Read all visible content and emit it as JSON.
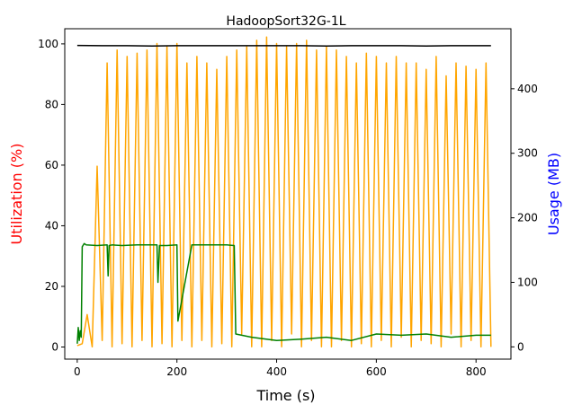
{
  "chart_data": {
    "type": "line",
    "title": "HadoopSort32G-1L",
    "xlabel": "Time (s)",
    "ylabel_left": "Utilization (%)",
    "ylabel_right": "Usage (MB)",
    "colors": {
      "ylabel_left": "#ff0000",
      "ylabel_right": "#0000ff",
      "black_series": "#000000",
      "orange_series": "#ffa500",
      "green_series": "#008000"
    },
    "xlim": [
      -25,
      870
    ],
    "ylim_left": [
      -4,
      105
    ],
    "ylim_right": [
      -19,
      493
    ],
    "x_ticks": [
      0,
      200,
      400,
      600,
      800
    ],
    "y_ticks_left": [
      0,
      20,
      40,
      60,
      80,
      100
    ],
    "y_ticks_right": [
      0,
      100,
      200,
      300,
      400
    ],
    "grid": false,
    "legend": "none",
    "series": [
      {
        "axis": "left",
        "color": "#000000",
        "x": [
          0,
          50,
          100,
          150,
          200,
          250,
          300,
          350,
          400,
          450,
          500,
          550,
          600,
          650,
          700,
          750,
          800,
          830
        ],
        "y": [
          99.5,
          99.4,
          99.4,
          99.3,
          99.4,
          99.4,
          99.4,
          99.4,
          99.4,
          99.4,
          99.3,
          99.4,
          99.4,
          99.4,
          99.3,
          99.4,
          99.4,
          99.4
        ]
      },
      {
        "axis": "right",
        "color": "#008000",
        "x": [
          0,
          2,
          4,
          6,
          8,
          10,
          14,
          18,
          40,
          60,
          62,
          64,
          70,
          90,
          120,
          150,
          160,
          162,
          165,
          180,
          200,
          202,
          230,
          260,
          300,
          315,
          318,
          350,
          400,
          450,
          500,
          550,
          600,
          650,
          700,
          750,
          800,
          830
        ],
        "y": [
          5,
          30,
          10,
          25,
          15,
          155,
          160,
          158,
          157,
          158,
          110,
          157,
          158,
          157,
          158,
          158,
          158,
          100,
          157,
          157,
          158,
          40,
          158,
          158,
          158,
          157,
          20,
          15,
          10,
          12,
          15,
          10,
          20,
          18,
          20,
          15,
          18,
          18
        ]
      },
      {
        "axis": "right",
        "color": "#ffa500",
        "x": [
          0,
          10,
          20,
          30,
          40,
          50,
          60,
          70,
          80,
          90,
          100,
          110,
          120,
          130,
          140,
          150,
          160,
          170,
          180,
          190,
          200,
          210,
          220,
          230,
          240,
          250,
          260,
          270,
          280,
          290,
          300,
          310,
          320,
          330,
          340,
          350,
          360,
          370,
          380,
          390,
          400,
          410,
          420,
          430,
          440,
          450,
          460,
          470,
          480,
          490,
          500,
          510,
          520,
          530,
          540,
          550,
          560,
          570,
          580,
          590,
          600,
          610,
          620,
          630,
          640,
          650,
          660,
          670,
          680,
          690,
          700,
          710,
          720,
          730,
          740,
          750,
          760,
          770,
          780,
          790,
          800,
          810,
          820,
          830
        ],
        "y": [
          2,
          5,
          50,
          0,
          280,
          10,
          440,
          0,
          460,
          5,
          450,
          0,
          455,
          10,
          460,
          0,
          470,
          5,
          465,
          0,
          470,
          10,
          440,
          0,
          450,
          10,
          440,
          0,
          430,
          5,
          450,
          0,
          460,
          20,
          465,
          0,
          475,
          0,
          480,
          10,
          470,
          0,
          465,
          20,
          470,
          0,
          475,
          10,
          460,
          0,
          465,
          0,
          460,
          10,
          450,
          0,
          440,
          5,
          455,
          0,
          450,
          10,
          440,
          0,
          450,
          15,
          440,
          0,
          440,
          10,
          430,
          5,
          450,
          0,
          420,
          20,
          440,
          0,
          435,
          10,
          430,
          0,
          440,
          0
        ]
      }
    ]
  }
}
